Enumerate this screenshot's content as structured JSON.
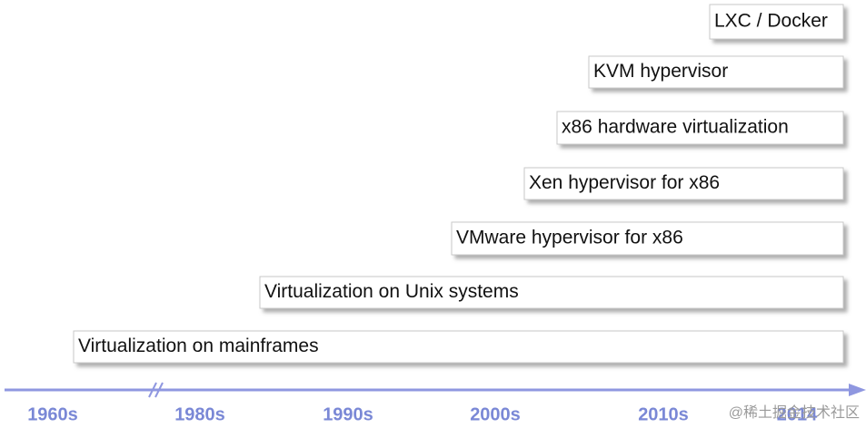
{
  "bars": [
    {
      "label": "LXC / Docker"
    },
    {
      "label": "KVM hypervisor"
    },
    {
      "label": "x86 hardware virtualization"
    },
    {
      "label": "Xen hypervisor for x86"
    },
    {
      "label": "VMware hypervisor for x86"
    },
    {
      "label": "Virtualization on Unix systems"
    },
    {
      "label": "Virtualization on mainframes"
    }
  ],
  "axis": {
    "labels": [
      "1960s",
      "1980s",
      "1990s",
      "2000s",
      "2010s",
      "2014"
    ]
  },
  "watermark": "@稀土掘金技术社区"
}
